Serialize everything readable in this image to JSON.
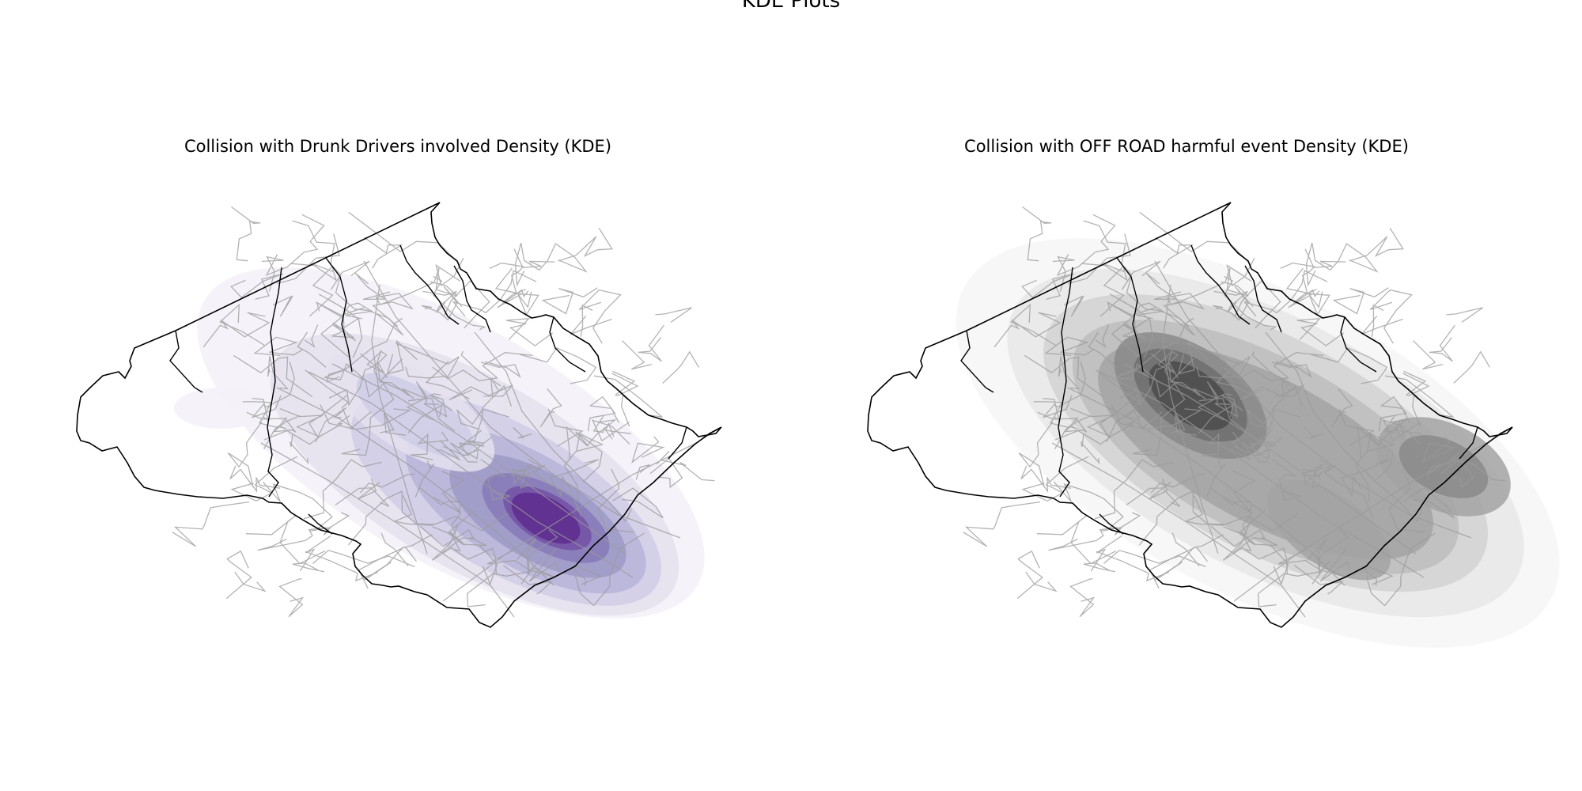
{
  "figure": {
    "suptitle": "KDE Plots"
  },
  "panels": [
    {
      "title": "Collision with Drunk Drivers involved Density (KDE)",
      "colormap": "Purples",
      "colors": [
        "#f3f1f8",
        "#e4e1ef",
        "#cfcde6",
        "#b7b4d8",
        "#9d99c7",
        "#8679b7",
        "#7350a4",
        "#5e2c8e"
      ],
      "hotspot": "southeast center"
    },
    {
      "title": "Collision with OFF ROAD harmful event Density (KDE)",
      "colormap": "Greys",
      "colors": [
        "#f6f6f6",
        "#e7e7e7",
        "#d2d2d2",
        "#bdbdbd",
        "#a3a3a3",
        "#8a8a8a",
        "#6f6f6f",
        "#4b4b4b"
      ],
      "hotspot": "northwest center"
    }
  ],
  "style": {
    "boundary_color": "#000000",
    "road_color": "#9a9a9a"
  }
}
